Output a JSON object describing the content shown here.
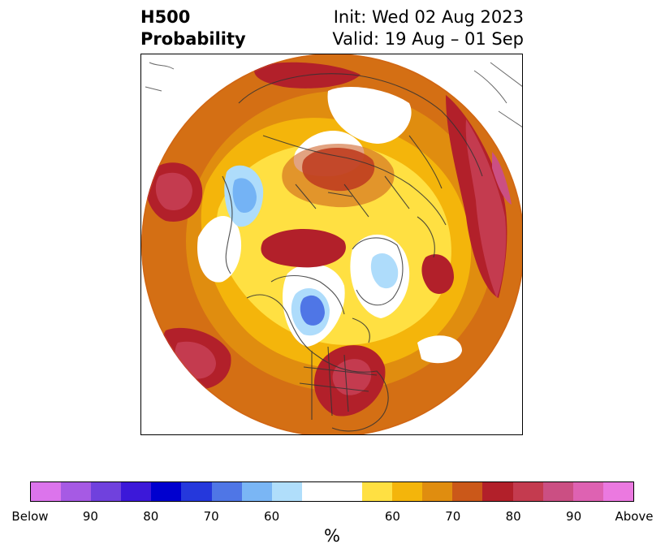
{
  "header": {
    "title_line1": "H500",
    "title_line2": "Probability",
    "init_label": "Init: Wed 02 Aug 2023",
    "valid_label": "Valid: 19 Aug – 01 Sep"
  },
  "map": {
    "projection": "north-polar-stereographic",
    "legend_placement": "bottom",
    "regions": [
      {
        "name": "eastern-us-anomaly",
        "level": "80+",
        "color": "#b2202a"
      },
      {
        "name": "central-canada-anomaly",
        "level": "80",
        "color": "#b2202a"
      },
      {
        "name": "north-pacific-anomaly",
        "level": "85",
        "color": "#c7434f"
      },
      {
        "name": "north-atlantic-anomaly",
        "level": "85",
        "color": "#c7434f"
      },
      {
        "name": "siberia-anomaly",
        "level": "80",
        "color": "#b2202a"
      },
      {
        "name": "hudson-bay-below",
        "level": "65",
        "color": "#4b79e5"
      },
      {
        "name": "greenland-below",
        "level": "60",
        "color": "#aedcfb"
      },
      {
        "name": "east-asia-below",
        "level": "65",
        "color": "#74b3f5"
      }
    ]
  },
  "colorbar": {
    "unit_label": "%",
    "segments": [
      "#dc74ec",
      "#a65ae4",
      "#7041dd",
      "#3c18d9",
      "#0000cf",
      "#2538dc",
      "#4f76e6",
      "#7ab6f5",
      "#b0defb",
      "#ffffff",
      "#ffffff",
      "#ffe042",
      "#f4b50b",
      "#e08d0f",
      "#cb5819",
      "#b2202a",
      "#c43b4f",
      "#cb4f83",
      "#de62b2",
      "#eb79e0"
    ],
    "tick_labels": [
      "Below",
      "90",
      "80",
      "70",
      "60",
      "60",
      "70",
      "80",
      "90",
      "Above"
    ]
  }
}
